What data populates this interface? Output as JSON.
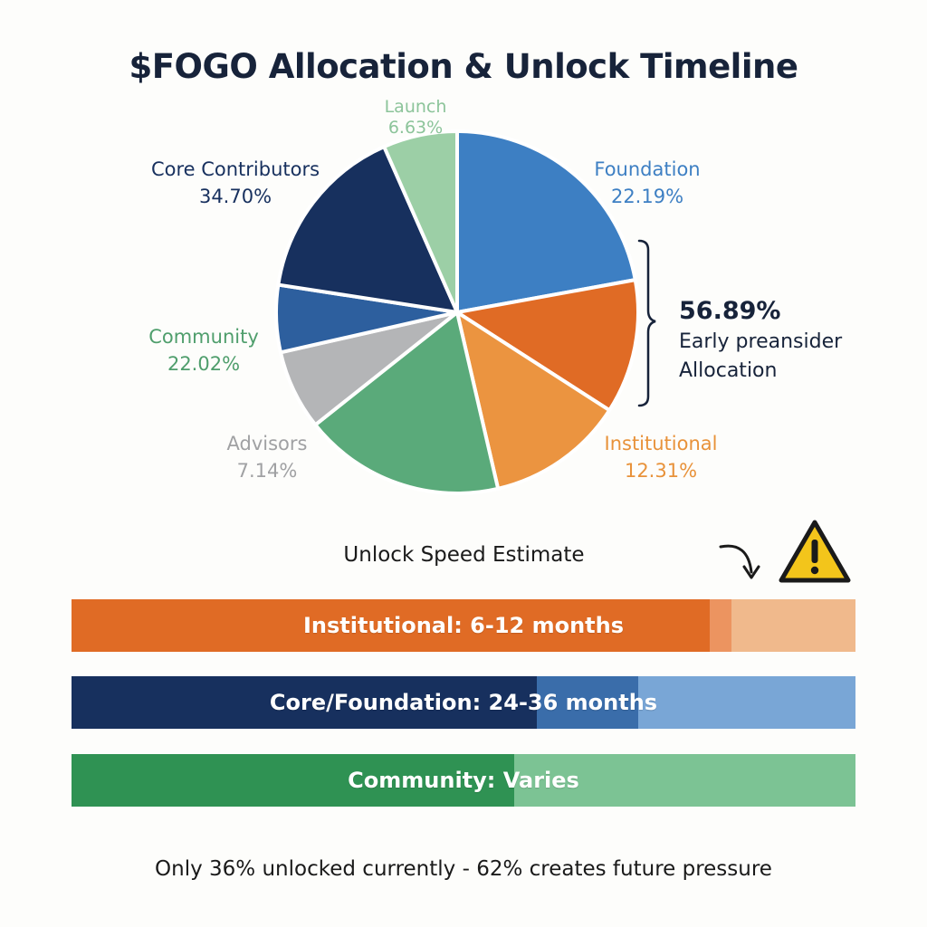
{
  "title": "$FOGO Allocation & Unlock Timeline",
  "chart_data": [
    {
      "type": "pie",
      "slices": [
        {
          "label": "Foundation",
          "value_label": "22.19%",
          "value": 22.19,
          "color": "#3d7fc3"
        },
        {
          "label": "",
          "value_label": "",
          "value": 12.0,
          "color": "#e06b25"
        },
        {
          "label": "Institutional",
          "value_label": "12.31%",
          "value": 12.31,
          "color": "#eb9440"
        },
        {
          "label": "",
          "value_label": "",
          "value": 18.0,
          "color": "#5aaa7a"
        },
        {
          "label": "Advisors",
          "value_label": "7.14%",
          "value": 7.14,
          "color": "#b4b5b7"
        },
        {
          "label": "",
          "value_label": "",
          "value": 6.0,
          "color": "#2d5f9e"
        },
        {
          "label": "",
          "value_label": "",
          "value": 16.0,
          "color": "#17305e"
        },
        {
          "label": "Launch",
          "value_label": "6.63%",
          "value": 6.63,
          "color": "#9ccfa6"
        }
      ],
      "labels": {
        "launch": {
          "name": "Launch",
          "value": "6.63%",
          "color": "#8cc49a"
        },
        "core": {
          "name": "Core Contributors",
          "value": "34.70%",
          "color": "#17305e"
        },
        "foundation": {
          "name": "Foundation",
          "value": "22.19%",
          "color": "#3d7fc3"
        },
        "community": {
          "name": "Community",
          "value": "22.02%",
          "color": "#4f9e6c"
        },
        "advisors": {
          "name": "Advisors",
          "value": "7.14%",
          "color": "#a0a1a3"
        },
        "institutional": {
          "name": "Institutional",
          "value": "12.31%",
          "color": "#e8923a"
        }
      },
      "bracket": {
        "value": "56.89%",
        "line1": "Early preansider",
        "line2": "Allocation"
      }
    },
    {
      "type": "bar",
      "title": "Unlock Speed Estimate",
      "bars": [
        {
          "label": "Institutional: 6-12 months",
          "segments": [
            {
              "fraction": 0.814,
              "color": "#e06b25"
            },
            {
              "fraction": 0.028,
              "color": "#ec9460"
            },
            {
              "fraction": 0.158,
              "color": "#f0b98c"
            }
          ]
        },
        {
          "label": "Core/Foundation: 24-36 months",
          "segments": [
            {
              "fraction": 0.593,
              "color": "#17305e"
            },
            {
              "fraction": 0.13,
              "color": "#3a6daa"
            },
            {
              "fraction": 0.277,
              "color": "#79a6d6"
            }
          ]
        },
        {
          "label": "Community: Varies",
          "segments": [
            {
              "fraction": 0.565,
              "color": "#2f9253"
            },
            {
              "fraction": 0.435,
              "color": "#7cc394"
            }
          ]
        }
      ]
    }
  ],
  "footer": "Only 36% unlocked currently - 62% creates future pressure",
  "icons": {
    "arrow": "curved-arrow-icon",
    "warning": "warning-triangle-icon"
  }
}
